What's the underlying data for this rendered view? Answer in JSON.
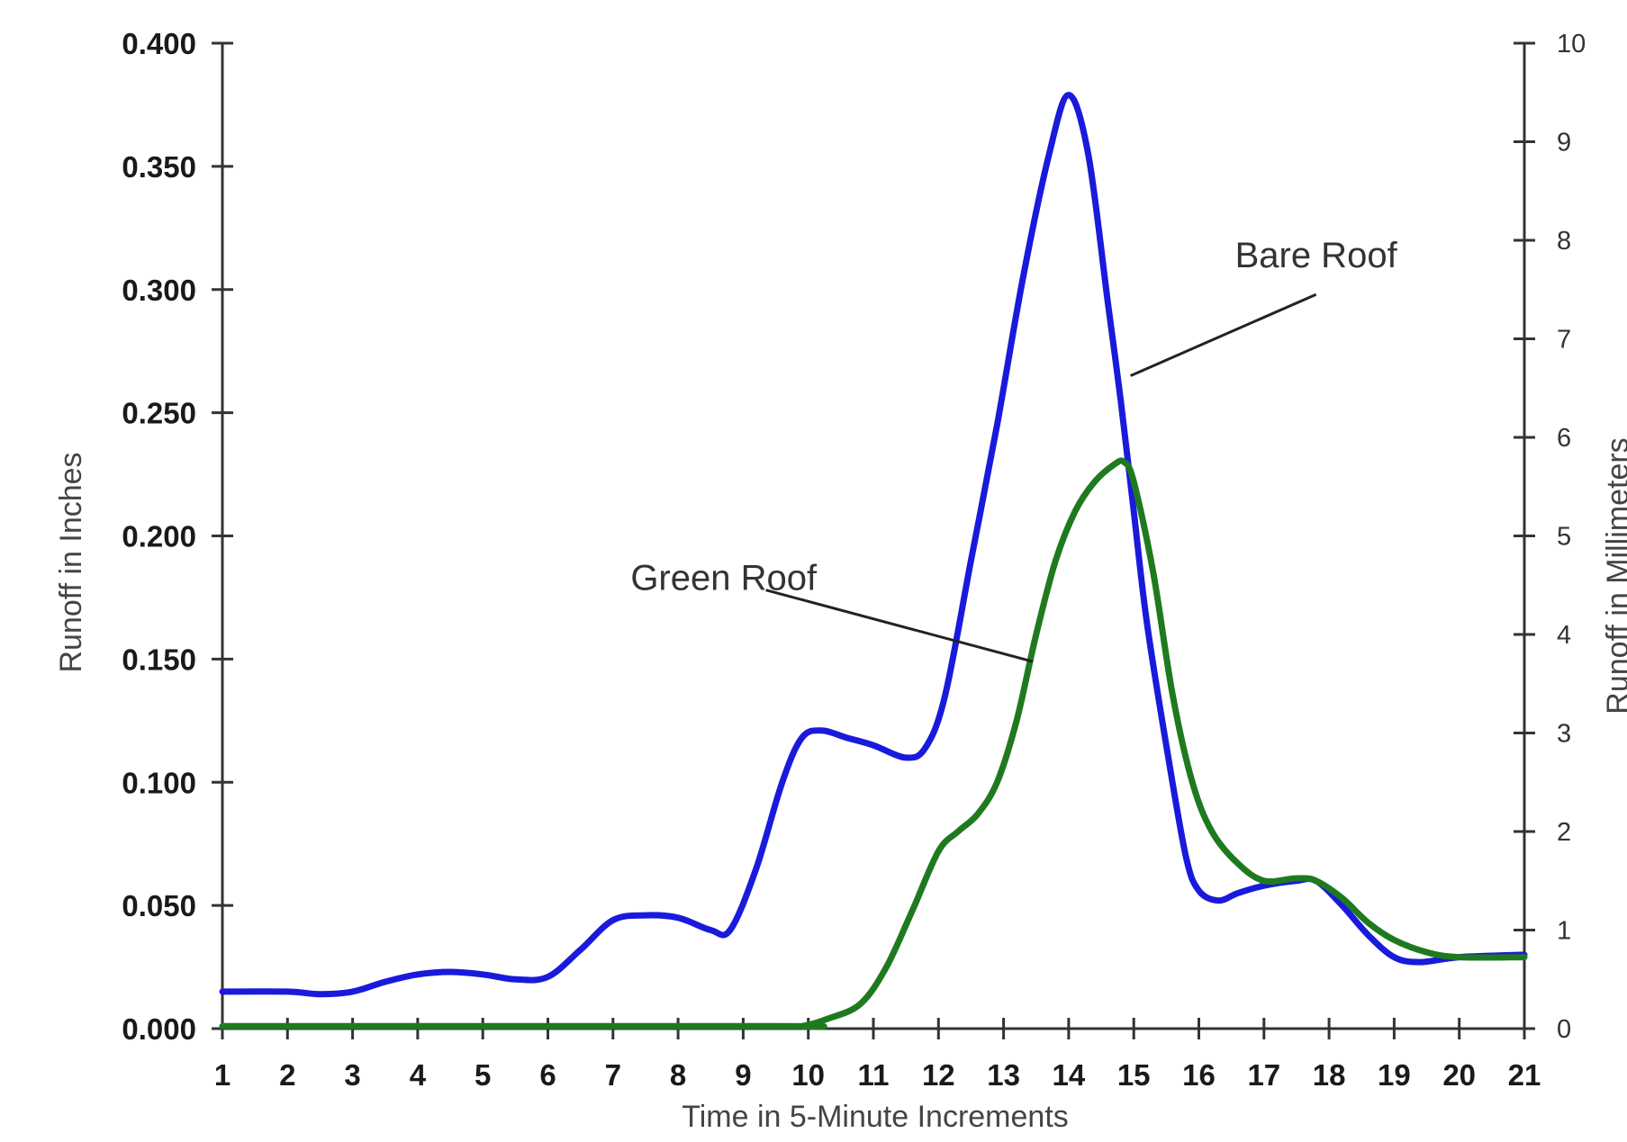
{
  "chart_data": {
    "type": "line",
    "xlabel": "Time in 5-Minute Increments",
    "ylabel": "Runoff in Inches",
    "ylabel_right": "Runoff in Millimeters",
    "xlim": [
      1,
      21
    ],
    "ylim": [
      0,
      0.4
    ],
    "ylim_right": [
      0,
      10
    ],
    "x_ticks": [
      1,
      2,
      3,
      4,
      5,
      6,
      7,
      8,
      9,
      10,
      11,
      12,
      13,
      14,
      15,
      16,
      17,
      18,
      19,
      20,
      21
    ],
    "y_ticks": [
      "0.000",
      "0.050",
      "0.100",
      "0.150",
      "0.200",
      "0.250",
      "0.300",
      "0.350",
      "0.400"
    ],
    "y_ticks_right": [
      "0",
      "1",
      "2",
      "3",
      "4",
      "5",
      "6",
      "7",
      "8",
      "9",
      "10"
    ],
    "grid": false,
    "legend": "none",
    "series": [
      {
        "name": "Bare Roof",
        "color": "#1a1adc",
        "points": [
          [
            1,
            0.015
          ],
          [
            2,
            0.015
          ],
          [
            2.5,
            0.014
          ],
          [
            3,
            0.015
          ],
          [
            3.5,
            0.019
          ],
          [
            4,
            0.022
          ],
          [
            4.5,
            0.023
          ],
          [
            5,
            0.022
          ],
          [
            5.5,
            0.02
          ],
          [
            6,
            0.021
          ],
          [
            6.5,
            0.032
          ],
          [
            7,
            0.044
          ],
          [
            7.5,
            0.046
          ],
          [
            8,
            0.045
          ],
          [
            8.5,
            0.04
          ],
          [
            8.8,
            0.04
          ],
          [
            9.2,
            0.065
          ],
          [
            9.6,
            0.1
          ],
          [
            9.9,
            0.118
          ],
          [
            10.2,
            0.121
          ],
          [
            10.6,
            0.118
          ],
          [
            11,
            0.115
          ],
          [
            11.5,
            0.11
          ],
          [
            11.8,
            0.114
          ],
          [
            12.1,
            0.135
          ],
          [
            12.5,
            0.19
          ],
          [
            12.9,
            0.245
          ],
          [
            13.3,
            0.305
          ],
          [
            13.7,
            0.355
          ],
          [
            14,
            0.379
          ],
          [
            14.3,
            0.355
          ],
          [
            14.6,
            0.295
          ],
          [
            14.8,
            0.255
          ],
          [
            15,
            0.21
          ],
          [
            15.2,
            0.165
          ],
          [
            15.5,
            0.115
          ],
          [
            15.8,
            0.07
          ],
          [
            16,
            0.056
          ],
          [
            16.3,
            0.052
          ],
          [
            16.6,
            0.055
          ],
          [
            17,
            0.058
          ],
          [
            17.5,
            0.06
          ],
          [
            17.8,
            0.06
          ],
          [
            18.2,
            0.05
          ],
          [
            18.6,
            0.038
          ],
          [
            19,
            0.029
          ],
          [
            19.4,
            0.027
          ],
          [
            20,
            0.029
          ],
          [
            21,
            0.03
          ]
        ]
      },
      {
        "name": "Green Roof",
        "color": "#1f7a1f",
        "points": [
          [
            1,
            0.001
          ],
          [
            9.5,
            0.001
          ],
          [
            9.9,
            0.001
          ],
          [
            10.3,
            0.004
          ],
          [
            10.8,
            0.01
          ],
          [
            11.2,
            0.025
          ],
          [
            11.6,
            0.048
          ],
          [
            12,
            0.072
          ],
          [
            12.3,
            0.08
          ],
          [
            12.6,
            0.087
          ],
          [
            12.9,
            0.1
          ],
          [
            13.2,
            0.125
          ],
          [
            13.5,
            0.16
          ],
          [
            13.8,
            0.19
          ],
          [
            14.1,
            0.21
          ],
          [
            14.4,
            0.222
          ],
          [
            14.7,
            0.229
          ],
          [
            14.85,
            0.23
          ],
          [
            15,
            0.222
          ],
          [
            15.3,
            0.185
          ],
          [
            15.6,
            0.135
          ],
          [
            15.9,
            0.1
          ],
          [
            16.2,
            0.08
          ],
          [
            16.6,
            0.067
          ],
          [
            17,
            0.06
          ],
          [
            17.5,
            0.061
          ],
          [
            17.8,
            0.06
          ],
          [
            18.2,
            0.053
          ],
          [
            18.6,
            0.043
          ],
          [
            19,
            0.036
          ],
          [
            19.5,
            0.031
          ],
          [
            20,
            0.029
          ],
          [
            21,
            0.029
          ]
        ]
      }
    ],
    "annotations": [
      {
        "text": "Bare Roof",
        "text_anchor": [
          17.8,
          0.309
        ],
        "line_from": [
          17.8,
          0.298
        ],
        "line_to": [
          14.95,
          0.265
        ]
      },
      {
        "text": "Green Roof",
        "text_anchor": [
          8.7,
          0.178
        ],
        "line_from": [
          9.35,
          0.178
        ],
        "line_to": [
          13.45,
          0.149
        ]
      }
    ]
  }
}
